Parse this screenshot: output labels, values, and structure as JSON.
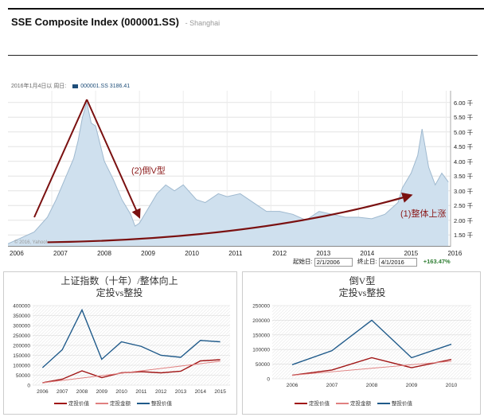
{
  "header": {
    "title": "SSE Composite Index (000001.SS)",
    "location": "Shanghai"
  },
  "main_chart": {
    "info_date": "2016年1月4日以",
    "info_label": "周日:",
    "info_series": "000001.SS 3186.41",
    "watermark": "© 2016, Yahoo!",
    "anno_down": "(2)倒V型",
    "anno_up": "(1)整体上涨",
    "start_label": "起始日:",
    "start_value": "2/1/2006",
    "end_label": "终止日:",
    "end_value": "4/1/2016",
    "change_pct": "+163.47%",
    "colors": {
      "area": "#cfe0ee",
      "line": "#9fb9cf",
      "arrow": "#7a1010"
    }
  },
  "chart_data": [
    {
      "type": "area",
      "title": "SSE Composite Index (000001.SS)",
      "x_ticks": [
        "2006",
        "2007",
        "2008",
        "2009",
        "2010",
        "2011",
        "2012",
        "2013",
        "2014",
        "2015",
        "2016"
      ],
      "y_ticks": [
        "1.50 千",
        "2.00 千",
        "2.50 千",
        "3.00 千",
        "3.50 千",
        "4.00 千",
        "4.50 千",
        "5.00 千",
        "5.50 千",
        "6.00 千"
      ],
      "ylim": [
        1.1,
        6.4
      ],
      "x": [
        2006.0,
        2006.3,
        2006.6,
        2006.9,
        2007.1,
        2007.3,
        2007.5,
        2007.6,
        2007.7,
        2007.8,
        2007.9,
        2008.0,
        2008.2,
        2008.4,
        2008.6,
        2008.8,
        2008.9,
        2009.0,
        2009.2,
        2009.4,
        2009.6,
        2009.8,
        2010.0,
        2010.3,
        2010.5,
        2010.8,
        2011.0,
        2011.3,
        2011.6,
        2011.9,
        2012.2,
        2012.5,
        2012.8,
        2013.1,
        2013.4,
        2013.7,
        2014.0,
        2014.3,
        2014.6,
        2014.9,
        2015.0,
        2015.2,
        2015.35,
        2015.45,
        2015.6,
        2015.75,
        2015.9,
        2016.05
      ],
      "values": [
        1.2,
        1.4,
        1.6,
        2.1,
        2.7,
        3.4,
        4.1,
        4.7,
        5.5,
        6.0,
        5.3,
        5.2,
        4.0,
        3.4,
        2.7,
        2.2,
        1.8,
        1.9,
        2.4,
        2.9,
        3.2,
        3.0,
        3.2,
        2.7,
        2.6,
        2.9,
        2.8,
        2.9,
        2.6,
        2.3,
        2.3,
        2.2,
        2.0,
        2.3,
        2.2,
        2.1,
        2.1,
        2.05,
        2.2,
        2.6,
        3.1,
        3.6,
        4.2,
        5.1,
        3.8,
        3.2,
        3.6,
        3.3
      ],
      "arrow_down": {
        "from": [
          2007.8,
          6.1
        ],
        "peak": [
          2007.8,
          6.1
        ],
        "start": [
          2006.6,
          2.1
        ],
        "end": [
          2009.0,
          2.1
        ]
      },
      "arrow_up": {
        "start": [
          2006.9,
          1.25
        ],
        "end": [
          2015.2,
          2.85
        ]
      }
    },
    {
      "type": "line",
      "title": "上证指数（十年）/整体向上",
      "subtitle": "定投vs整投",
      "categories": [
        "2006",
        "2007",
        "2008",
        "2009",
        "2010",
        "2011",
        "2012",
        "2013",
        "2014",
        "2015"
      ],
      "ylim": [
        0,
        400000
      ],
      "y_ticks": [
        "0",
        "50000",
        "100000",
        "150000",
        "200000",
        "250000",
        "300000",
        "350000",
        "400000"
      ],
      "series": [
        {
          "name": "定投价值",
          "color": "#a01515",
          "values": [
            12000,
            30000,
            72000,
            38000,
            62000,
            68000,
            62000,
            70000,
            122000,
            128000
          ]
        },
        {
          "name": "定投金额",
          "color": "#e08080",
          "values": [
            12000,
            24000,
            36000,
            48000,
            60000,
            72000,
            84000,
            96000,
            108000,
            120000
          ]
        },
        {
          "name": "整投价值",
          "color": "#1f5a8a",
          "values": [
            88000,
            178000,
            378000,
            130000,
            218000,
            195000,
            150000,
            140000,
            225000,
            218000
          ]
        }
      ]
    },
    {
      "type": "line",
      "title": "倒V型",
      "subtitle": "定投vs整投",
      "categories": [
        "2006",
        "2007",
        "2008",
        "2009",
        "2010"
      ],
      "ylim": [
        0,
        250000
      ],
      "y_ticks": [
        "0",
        "50000",
        "100000",
        "150000",
        "200000",
        "250000"
      ],
      "series": [
        {
          "name": "定投价值",
          "color": "#a01515",
          "values": [
            12000,
            30000,
            72000,
            38000,
            66000
          ]
        },
        {
          "name": "定投金额",
          "color": "#e08080",
          "values": [
            12000,
            24000,
            36000,
            48000,
            60000
          ]
        },
        {
          "name": "整投价值",
          "color": "#1f5a8a",
          "values": [
            48000,
            96000,
            200000,
            72000,
            118000
          ]
        }
      ]
    }
  ]
}
